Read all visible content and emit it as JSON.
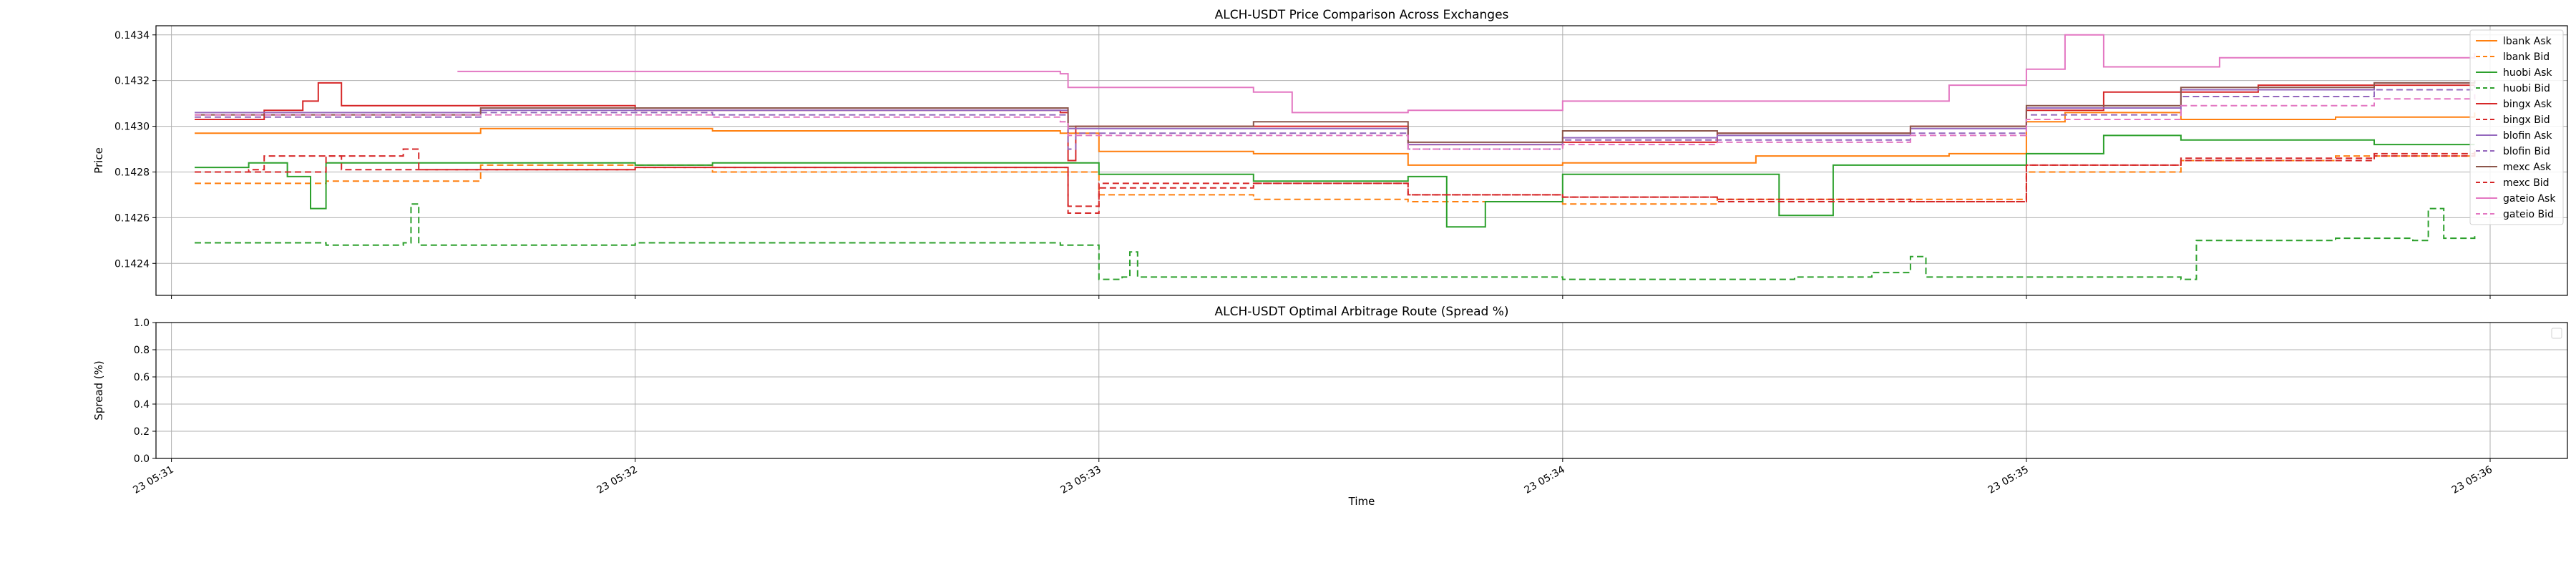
{
  "chart_data": [
    {
      "type": "line",
      "title": "ALCH-USDT Price Comparison Across Exchanges",
      "xlabel": "",
      "ylabel": "Price",
      "ylim": [
        0.14226,
        0.14344
      ],
      "xlim": [
        "05:30:58",
        "05:36:10"
      ],
      "x_ticks": [
        {
          "t": "05:31:00",
          "label": "23 05:31"
        },
        {
          "t": "05:32:00",
          "label": "23 05:32"
        },
        {
          "t": "05:33:00",
          "label": "23 05:33"
        },
        {
          "t": "05:34:00",
          "label": "23 05:34"
        },
        {
          "t": "05:35:00",
          "label": "23 05:35"
        },
        {
          "t": "05:36:00",
          "label": "23 05:36"
        }
      ],
      "y_ticks": [
        "0.1424",
        "0.1426",
        "0.1428",
        "0.1430",
        "0.1432",
        "0.1434"
      ],
      "grid": true,
      "legend_position": "upper-right",
      "series": [
        {
          "name": "lbank Ask",
          "color": "#ff7f0e",
          "dash": "solid",
          "points": [
            [
              "05:31:03",
              0.14297
            ],
            [
              "05:31:35",
              0.14297
            ],
            [
              "05:31:40",
              0.14299
            ],
            [
              "05:32:10",
              0.14298
            ],
            [
              "05:32:55",
              0.14297
            ],
            [
              "05:33:00",
              0.14289
            ],
            [
              "05:33:20",
              0.14288
            ],
            [
              "05:33:40",
              0.14283
            ],
            [
              "05:34:00",
              0.14284
            ],
            [
              "05:34:25",
              0.14287
            ],
            [
              "05:34:50",
              0.14288
            ],
            [
              "05:35:00",
              0.14302
            ],
            [
              "05:35:05",
              0.14306
            ],
            [
              "05:35:20",
              0.14303
            ],
            [
              "05:35:40",
              0.14304
            ],
            [
              "05:35:58",
              0.14306
            ]
          ]
        },
        {
          "name": "lbank Bid",
          "color": "#ff7f0e",
          "dash": "dashed",
          "points": [
            [
              "05:31:03",
              0.14275
            ],
            [
              "05:31:20",
              0.14276
            ],
            [
              "05:31:40",
              0.14283
            ],
            [
              "05:32:10",
              0.1428
            ],
            [
              "05:32:55",
              0.1428
            ],
            [
              "05:33:00",
              0.1427
            ],
            [
              "05:33:20",
              0.14268
            ],
            [
              "05:33:40",
              0.14267
            ],
            [
              "05:34:00",
              0.14266
            ],
            [
              "05:34:20",
              0.14268
            ],
            [
              "05:34:50",
              0.14268
            ],
            [
              "05:35:00",
              0.1428
            ],
            [
              "05:35:20",
              0.14285
            ],
            [
              "05:35:40",
              0.14287
            ],
            [
              "05:35:58",
              0.14289
            ]
          ]
        },
        {
          "name": "huobi Ask",
          "color": "#2ca02c",
          "dash": "solid",
          "points": [
            [
              "05:31:03",
              0.14282
            ],
            [
              "05:31:10",
              0.14284
            ],
            [
              "05:31:15",
              0.14278
            ],
            [
              "05:31:18",
              0.14264
            ],
            [
              "05:31:20",
              0.14284
            ],
            [
              "05:31:40",
              0.14284
            ],
            [
              "05:32:00",
              0.14283
            ],
            [
              "05:32:10",
              0.14284
            ],
            [
              "05:32:55",
              0.14284
            ],
            [
              "05:33:00",
              0.14279
            ],
            [
              "05:33:20",
              0.14276
            ],
            [
              "05:33:40",
              0.14278
            ],
            [
              "05:33:45",
              0.14256
            ],
            [
              "05:33:50",
              0.14267
            ],
            [
              "05:34:00",
              0.14279
            ],
            [
              "05:34:20",
              0.14279
            ],
            [
              "05:34:28",
              0.14261
            ],
            [
              "05:34:35",
              0.14283
            ],
            [
              "05:35:00",
              0.14288
            ],
            [
              "05:35:10",
              0.14296
            ],
            [
              "05:35:20",
              0.14294
            ],
            [
              "05:35:45",
              0.14292
            ],
            [
              "05:35:58",
              0.14292
            ]
          ]
        },
        {
          "name": "huobi Bid",
          "color": "#2ca02c",
          "dash": "dashed",
          "points": [
            [
              "05:31:03",
              0.14249
            ],
            [
              "05:31:20",
              0.14248
            ],
            [
              "05:31:30",
              0.14249
            ],
            [
              "05:31:31",
              0.14266
            ],
            [
              "05:31:32",
              0.14248
            ],
            [
              "05:32:00",
              0.14249
            ],
            [
              "05:32:55",
              0.14248
            ],
            [
              "05:33:00",
              0.14233
            ],
            [
              "05:33:03",
              0.14234
            ],
            [
              "05:33:04",
              0.14245
            ],
            [
              "05:33:05",
              0.14234
            ],
            [
              "05:33:40",
              0.14234
            ],
            [
              "05:34:00",
              0.14233
            ],
            [
              "05:34:30",
              0.14234
            ],
            [
              "05:34:40",
              0.14236
            ],
            [
              "05:34:45",
              0.14243
            ],
            [
              "05:34:47",
              0.14234
            ],
            [
              "05:35:00",
              0.14234
            ],
            [
              "05:35:20",
              0.14233
            ],
            [
              "05:35:22",
              0.1425
            ],
            [
              "05:35:40",
              0.14251
            ],
            [
              "05:35:50",
              0.1425
            ],
            [
              "05:35:52",
              0.14264
            ],
            [
              "05:35:54",
              0.14251
            ],
            [
              "05:35:58",
              0.14252
            ]
          ]
        },
        {
          "name": "bingx Ask",
          "color": "#d62728",
          "dash": "solid",
          "points": [
            [
              "05:31:03",
              0.14303
            ],
            [
              "05:31:12",
              0.14307
            ],
            [
              "05:31:17",
              0.14311
            ],
            [
              "05:31:19",
              0.14319
            ],
            [
              "05:31:22",
              0.14309
            ],
            [
              "05:31:40",
              0.14309
            ],
            [
              "05:32:00",
              0.14307
            ],
            [
              "05:32:55",
              0.14306
            ],
            [
              "05:32:56",
              0.14285
            ],
            [
              "05:32:57",
              0.143
            ],
            [
              "05:33:20",
              0.143
            ],
            [
              "05:33:40",
              0.14292
            ],
            [
              "05:34:00",
              0.14293
            ],
            [
              "05:34:20",
              0.14297
            ],
            [
              "05:34:45",
              0.143
            ],
            [
              "05:35:00",
              0.14307
            ],
            [
              "05:35:10",
              0.14315
            ],
            [
              "05:35:30",
              0.14318
            ],
            [
              "05:35:45",
              0.14318
            ],
            [
              "05:35:58",
              0.14318
            ]
          ]
        },
        {
          "name": "bingx Bid",
          "color": "#d62728",
          "dash": "dashed",
          "points": [
            [
              "05:31:03",
              0.1428
            ],
            [
              "05:31:10",
              0.14281
            ],
            [
              "05:31:12",
              0.14287
            ],
            [
              "05:31:20",
              0.14287
            ],
            [
              "05:31:22",
              0.14281
            ],
            [
              "05:31:40",
              0.14281
            ],
            [
              "05:32:00",
              0.14282
            ],
            [
              "05:32:55",
              0.14282
            ],
            [
              "05:32:56",
              0.14265
            ],
            [
              "05:33:00",
              0.14275
            ],
            [
              "05:33:20",
              0.14275
            ],
            [
              "05:33:40",
              0.1427
            ],
            [
              "05:34:00",
              0.14269
            ],
            [
              "05:34:20",
              0.14268
            ],
            [
              "05:34:45",
              0.14267
            ],
            [
              "05:35:00",
              0.14283
            ],
            [
              "05:35:20",
              0.14285
            ],
            [
              "05:35:45",
              0.14287
            ],
            [
              "05:35:58",
              0.1429
            ]
          ]
        },
        {
          "name": "blofin Ask",
          "color": "#9467bd",
          "dash": "solid",
          "points": [
            [
              "05:31:03",
              0.14306
            ],
            [
              "05:31:40",
              0.14307
            ],
            [
              "05:32:10",
              0.14307
            ],
            [
              "05:32:55",
              0.14307
            ],
            [
              "05:32:56",
              0.14299
            ],
            [
              "05:33:20",
              0.14299
            ],
            [
              "05:33:40",
              0.14292
            ],
            [
              "05:34:00",
              0.14295
            ],
            [
              "05:34:20",
              0.14296
            ],
            [
              "05:34:45",
              0.14299
            ],
            [
              "05:35:00",
              0.14308
            ],
            [
              "05:35:20",
              0.14316
            ],
            [
              "05:35:45",
              0.14319
            ],
            [
              "05:35:58",
              0.1432
            ]
          ]
        },
        {
          "name": "blofin Bid",
          "color": "#9467bd",
          "dash": "dashed",
          "points": [
            [
              "05:31:03",
              0.14304
            ],
            [
              "05:31:40",
              0.14306
            ],
            [
              "05:32:10",
              0.14305
            ],
            [
              "05:32:55",
              0.14305
            ],
            [
              "05:32:56",
              0.1429
            ],
            [
              "05:32:57",
              0.14297
            ],
            [
              "05:33:20",
              0.14297
            ],
            [
              "05:33:40",
              0.1429
            ],
            [
              "05:34:00",
              0.14294
            ],
            [
              "05:34:20",
              0.14294
            ],
            [
              "05:34:45",
              0.14297
            ],
            [
              "05:35:00",
              0.14305
            ],
            [
              "05:35:20",
              0.14313
            ],
            [
              "05:35:45",
              0.14316
            ],
            [
              "05:35:58",
              0.14318
            ]
          ]
        },
        {
          "name": "mexc Ask",
          "color": "#8c564b",
          "dash": "solid",
          "points": [
            [
              "05:31:03",
              0.14305
            ],
            [
              "05:31:40",
              0.14308
            ],
            [
              "05:32:10",
              0.14308
            ],
            [
              "05:32:55",
              0.14308
            ],
            [
              "05:32:56",
              0.143
            ],
            [
              "05:33:20",
              0.14302
            ],
            [
              "05:33:40",
              0.14293
            ],
            [
              "05:34:00",
              0.14298
            ],
            [
              "05:34:20",
              0.14297
            ],
            [
              "05:34:45",
              0.143
            ],
            [
              "05:35:00",
              0.14309
            ],
            [
              "05:35:20",
              0.14317
            ],
            [
              "05:35:45",
              0.14319
            ],
            [
              "05:35:58",
              0.1432
            ]
          ]
        },
        {
          "name": "mexc Bid",
          "color": "#d62728",
          "dash": "dashed",
          "points": [
            [
              "05:31:03",
              0.1428
            ],
            [
              "05:31:20",
              0.14287
            ],
            [
              "05:31:30",
              0.1429
            ],
            [
              "05:31:32",
              0.14281
            ],
            [
              "05:32:00",
              0.14282
            ],
            [
              "05:32:55",
              0.14282
            ],
            [
              "05:32:56",
              0.14262
            ],
            [
              "05:33:00",
              0.14273
            ],
            [
              "05:33:20",
              0.14275
            ],
            [
              "05:33:40",
              0.1427
            ],
            [
              "05:34:00",
              0.14269
            ],
            [
              "05:34:20",
              0.14267
            ],
            [
              "05:34:45",
              0.14267
            ],
            [
              "05:35:00",
              0.14283
            ],
            [
              "05:35:20",
              0.14286
            ],
            [
              "05:35:45",
              0.14288
            ],
            [
              "05:35:58",
              0.14289
            ]
          ]
        },
        {
          "name": "gateio Ask",
          "color": "#e377c2",
          "dash": "solid",
          "points": [
            [
              "05:31:37",
              0.14324
            ],
            [
              "05:32:55",
              0.14323
            ],
            [
              "05:32:56",
              0.14317
            ],
            [
              "05:33:20",
              0.14315
            ],
            [
              "05:33:25",
              0.14306
            ],
            [
              "05:33:40",
              0.14307
            ],
            [
              "05:34:00",
              0.14311
            ],
            [
              "05:34:30",
              0.14311
            ],
            [
              "05:34:50",
              0.14318
            ],
            [
              "05:35:00",
              0.14325
            ],
            [
              "05:35:05",
              0.1434
            ],
            [
              "05:35:10",
              0.14326
            ],
            [
              "05:35:20",
              0.14326
            ],
            [
              "05:35:25",
              0.1433
            ],
            [
              "05:35:45",
              0.1433
            ],
            [
              "05:35:58",
              0.14332
            ]
          ]
        },
        {
          "name": "gateio Bid",
          "color": "#e377c2",
          "dash": "dashed",
          "points": [
            [
              "05:31:03",
              0.14305
            ],
            [
              "05:31:40",
              0.14305
            ],
            [
              "05:32:10",
              0.14304
            ],
            [
              "05:32:55",
              0.14302
            ],
            [
              "05:32:56",
              0.14296
            ],
            [
              "05:33:20",
              0.14296
            ],
            [
              "05:33:40",
              0.1429
            ],
            [
              "05:34:00",
              0.14292
            ],
            [
              "05:34:20",
              0.14293
            ],
            [
              "05:34:45",
              0.14296
            ],
            [
              "05:35:00",
              0.14303
            ],
            [
              "05:35:20",
              0.14309
            ],
            [
              "05:35:45",
              0.14312
            ],
            [
              "05:35:58",
              0.14314
            ]
          ]
        }
      ]
    },
    {
      "type": "line",
      "title": "ALCH-USDT Optimal Arbitrage Route (Spread %)",
      "xlabel": "Time",
      "ylabel": "Spread (%)",
      "ylim": [
        0.0,
        1.0
      ],
      "xlim": [
        "05:30:58",
        "05:36:10"
      ],
      "y_ticks": [
        "0.0",
        "0.2",
        "0.4",
        "0.6",
        "0.8",
        "1.0"
      ],
      "grid": true,
      "legend_position": "upper-right",
      "series": []
    }
  ]
}
